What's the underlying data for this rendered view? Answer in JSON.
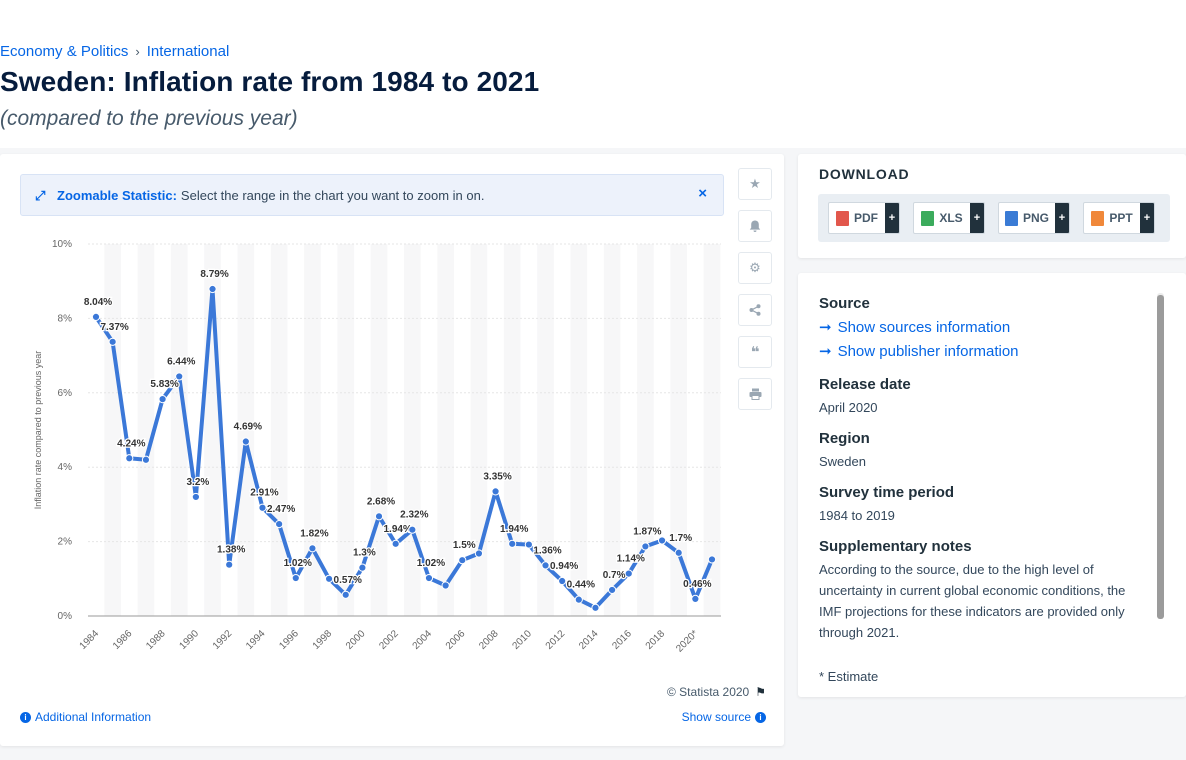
{
  "breadcrumb": {
    "item1": "Economy & Politics",
    "sep": "›",
    "item2": "International"
  },
  "title": "Sweden: Inflation rate from 1984 to 2021",
  "subtitle": "(compared to the previous year)",
  "zoom": {
    "icon": "expand-icon",
    "title": "Zoomable Statistic:",
    "text": "Select the range in the chart you want to zoom in on.",
    "close": "×"
  },
  "tools": [
    "star-icon",
    "bell-icon",
    "gear-icon",
    "share-icon",
    "quote-icon",
    "print-icon"
  ],
  "footer": {
    "copyright": "© Statista 2020",
    "additional_info": "Additional Information",
    "show_source": "Show source"
  },
  "download": {
    "title": "DOWNLOAD",
    "buttons": [
      {
        "label": "PDF",
        "plus": "+",
        "color": "#e2574c"
      },
      {
        "label": "XLS",
        "plus": "+",
        "color": "#3bab5c"
      },
      {
        "label": "PNG",
        "plus": "+",
        "color": "#3a7bd5"
      },
      {
        "label": "PPT",
        "plus": "+",
        "color": "#f0883a"
      }
    ]
  },
  "info": {
    "source_h": "Source",
    "show_sources": "Show sources information",
    "show_publisher": "Show publisher information",
    "release_h": "Release date",
    "release_v": "April 2020",
    "region_h": "Region",
    "region_v": "Sweden",
    "period_h": "Survey time period",
    "period_v": "1984 to 2019",
    "notes_h": "Supplementary notes",
    "notes_v": "According to the source, due to the high level of uncertainty in current global economic conditions, the IMF projections for these indicators are provided only through 2021.",
    "estimate_note": "* Estimate"
  },
  "colors": {
    "accent": "#0666e5",
    "line": "#3b78d8",
    "title": "#061c3d"
  },
  "chart_data": {
    "type": "line",
    "title": "",
    "xlabel": "",
    "ylabel": "Inflation rate compared to previous year",
    "ylim": [
      0,
      10
    ],
    "y_ticks": [
      "0%",
      "2%",
      "4%",
      "6%",
      "8%",
      "10%"
    ],
    "x_ticks": [
      "1984",
      "1986",
      "1988",
      "1990",
      "1992",
      "1994",
      "1996",
      "1998",
      "2000",
      "2002",
      "2004",
      "2006",
      "2008",
      "2010",
      "2012",
      "2014",
      "2016",
      "2018",
      "2020*"
    ],
    "grid": true,
    "series": [
      {
        "x": [
          1984,
          1985,
          1986,
          1987,
          1988,
          1989,
          1990,
          1991,
          1992,
          1993,
          1994,
          1995,
          1996,
          1997,
          1998,
          1999,
          2000,
          2001,
          2002,
          2003,
          2004,
          2005,
          2006,
          2007,
          2008,
          2009,
          2010,
          2011,
          2012,
          2013,
          2014,
          2015,
          2016,
          2017,
          2018,
          2019,
          2020,
          2021
        ],
        "values": [
          8.04,
          7.37,
          4.24,
          4.2,
          5.83,
          6.44,
          3.2,
          8.79,
          1.38,
          4.69,
          2.91,
          2.47,
          1.02,
          1.82,
          1.0,
          0.57,
          1.3,
          2.68,
          1.94,
          2.32,
          1.02,
          0.82,
          1.5,
          1.68,
          3.35,
          1.94,
          1.92,
          1.36,
          0.94,
          0.44,
          0.22,
          0.7,
          1.14,
          1.87,
          2.03,
          1.7,
          0.46,
          1.52
        ],
        "labels": [
          "8.04%",
          "7.37%",
          "4.24%",
          "",
          "5.83%",
          "6.44%",
          "3.2%",
          "8.79%",
          "1.38%",
          "4.69%",
          "2.91%",
          "2.47%",
          "1.02%",
          "1.82%",
          "",
          "0.57%",
          "1.3%",
          "2.68%",
          "1.94%",
          "2.32%",
          "1.02%",
          "",
          "1.5%",
          "",
          "3.35%",
          "1.94%",
          "",
          "1.36%",
          "0.94%",
          "0.44%",
          "",
          "0.7%",
          "1.14%",
          "1.87%",
          "",
          "1.7%",
          "0.46%",
          ""
        ]
      }
    ]
  }
}
